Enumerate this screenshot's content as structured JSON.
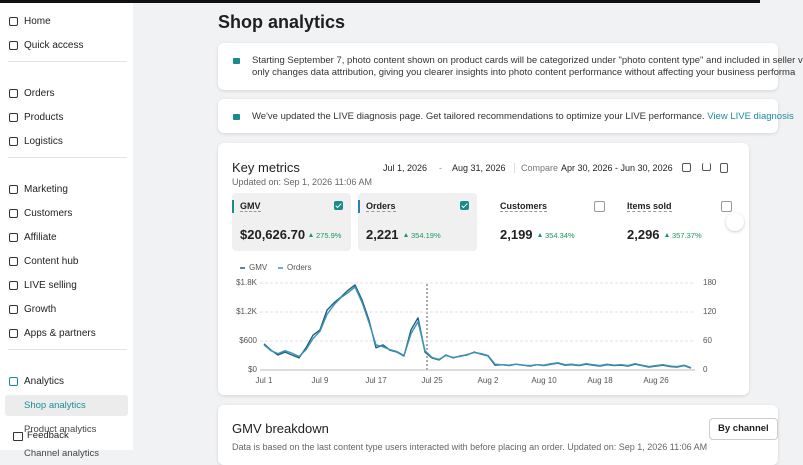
{
  "sidebar": {
    "groups": [
      [
        {
          "label": "Home"
        },
        {
          "label": "Quick access"
        }
      ],
      [
        {
          "label": "Orders"
        },
        {
          "label": "Products"
        },
        {
          "label": "Logistics"
        }
      ],
      [
        {
          "label": "Marketing"
        },
        {
          "label": "Customers"
        },
        {
          "label": "Affiliate"
        },
        {
          "label": "Content hub"
        },
        {
          "label": "LIVE selling"
        },
        {
          "label": "Growth"
        },
        {
          "label": "Apps & partners"
        }
      ],
      [
        {
          "label": "Analytics",
          "children": [
            "Shop analytics",
            "Product analytics",
            "Channel analytics"
          ],
          "selected_child": 0
        }
      ]
    ],
    "feedback": "Feedback"
  },
  "header": {
    "title": "Shop analytics"
  },
  "banners": [
    {
      "lines": [
        "Starting September 7, photo content shown on product cards will be categorized under \"photo content type\" and included in seller v",
        "only changes data attribution, giving you clearer insights into photo content performance without affecting your business performa"
      ]
    },
    {
      "lines": [
        "We've updated the LIVE diagnosis page. Get tailored recommendations to optimize your LIVE performance."
      ],
      "link": "View LIVE diagnosis"
    }
  ],
  "key_metrics": {
    "title": "Key metrics",
    "updated": "Updated on: Sep 1, 2026 11:06 AM",
    "date_start": "Jul 1, 2026",
    "date_sep": "-",
    "date_end": "Aug 31, 2026",
    "compare_label": "Compare",
    "compare_range": "Apr 30, 2026 - Jun 30, 2026",
    "metrics": [
      {
        "name": "GMV",
        "value": "$20,626.70",
        "change": "275.9%",
        "selected": true,
        "color": "#1b8a8f"
      },
      {
        "name": "Orders",
        "value": "2,221",
        "change": "354.19%",
        "selected": true,
        "color": "#2f7fb5"
      },
      {
        "name": "Customers",
        "value": "2,199",
        "change": "354.34%",
        "selected": false
      },
      {
        "name": "Items sold",
        "value": "2,296",
        "change": "357.37%",
        "selected": false
      }
    ]
  },
  "chart_data": {
    "type": "line",
    "categories": [
      "Jul 1",
      null,
      null,
      null,
      null,
      null,
      null,
      null,
      "Jul 9",
      null,
      null,
      null,
      null,
      null,
      null,
      null,
      "Jul 17",
      null,
      null,
      null,
      null,
      null,
      null,
      null,
      "Jul 25",
      null,
      null,
      null,
      null,
      null,
      null,
      null,
      "Aug 2",
      null,
      null,
      null,
      null,
      null,
      null,
      null,
      "Aug 10",
      null,
      null,
      null,
      null,
      null,
      null,
      null,
      "Aug 18",
      null,
      null,
      null,
      null,
      null,
      null,
      null,
      "Aug 26",
      null,
      null,
      null,
      null,
      null
    ],
    "series": [
      {
        "name": "GMV",
        "color": "#1d5f80",
        "values": [
          540,
          410,
          310,
          370,
          310,
          250,
          460,
          720,
          830,
          1240,
          1390,
          1510,
          1650,
          1760,
          1450,
          1030,
          460,
          520,
          410,
          370,
          290,
          830,
          1080,
          370,
          250,
          210,
          310,
          250,
          290,
          310,
          370,
          330,
          290,
          100,
          110,
          90,
          120,
          100,
          80,
          110,
          90,
          120,
          140,
          100,
          110,
          90,
          120,
          100,
          80,
          110,
          90,
          100,
          80,
          120,
          90,
          60,
          80,
          100,
          70,
          60,
          90,
          40
        ]
      },
      {
        "name": "Orders",
        "color": "#3d93b3",
        "axis": "y2",
        "values": [
          52,
          40,
          34,
          40,
          35,
          28,
          42,
          65,
          80,
          115,
          135,
          150,
          160,
          172,
          140,
          98,
          52,
          48,
          42,
          38,
          30,
          75,
          100,
          40,
          26,
          22,
          30,
          26,
          28,
          32,
          36,
          34,
          30,
          12,
          11,
          10,
          12,
          10,
          9,
          11,
          10,
          13,
          15,
          11,
          12,
          10,
          13,
          11,
          9,
          12,
          10,
          11,
          9,
          13,
          10,
          7,
          9,
          11,
          8,
          7,
          10,
          5
        ]
      }
    ],
    "ylim": [
      0,
      1800
    ],
    "yticks": [
      {
        "value": 0,
        "label": "$0"
      },
      {
        "value": 600,
        "label": "$600"
      },
      {
        "value": 1200,
        "label": "$1.2K"
      },
      {
        "value": 1800,
        "label": "$1.8K"
      }
    ],
    "y2lim": [
      0,
      180
    ],
    "y2ticks": [
      0,
      60,
      120,
      180
    ],
    "grid": true
  },
  "breakdown": {
    "title": "GMV breakdown",
    "note": "Data is based on the last content type users interacted with before placing an order.  Updated on: Sep 1, 2026 11:06 AM",
    "button": "By channel"
  }
}
